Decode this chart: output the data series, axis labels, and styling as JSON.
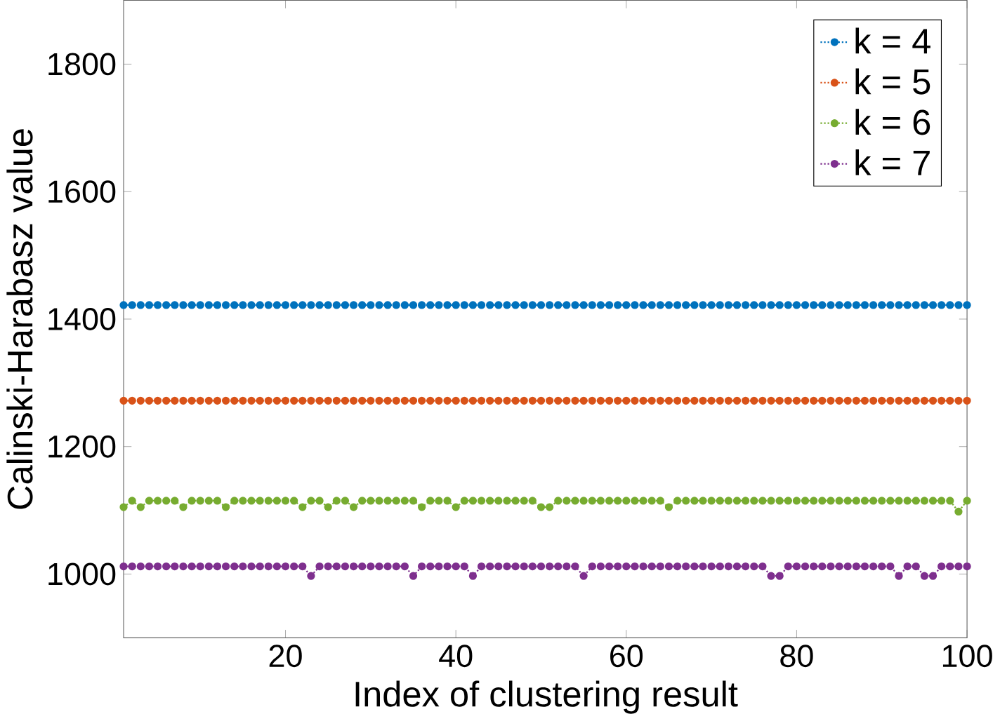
{
  "chart_data": {
    "type": "line",
    "xlabel": "Index of clustering result",
    "ylabel": "Calinski-Harabasz value",
    "x": [
      1,
      2,
      3,
      4,
      5,
      6,
      7,
      8,
      9,
      10,
      11,
      12,
      13,
      14,
      15,
      16,
      17,
      18,
      19,
      20,
      21,
      22,
      23,
      24,
      25,
      26,
      27,
      28,
      29,
      30,
      31,
      32,
      33,
      34,
      35,
      36,
      37,
      38,
      39,
      40,
      41,
      42,
      43,
      44,
      45,
      46,
      47,
      48,
      49,
      50,
      51,
      52,
      53,
      54,
      55,
      56,
      57,
      58,
      59,
      60,
      61,
      62,
      63,
      64,
      65,
      66,
      67,
      68,
      69,
      70,
      71,
      72,
      73,
      74,
      75,
      76,
      77,
      78,
      79,
      80,
      81,
      82,
      83,
      84,
      85,
      86,
      87,
      88,
      89,
      90,
      91,
      92,
      93,
      94,
      95,
      96,
      97,
      98,
      99,
      100
    ],
    "xlim": [
      1,
      100
    ],
    "xticks": [
      20,
      40,
      60,
      80,
      100
    ],
    "ylim": [
      900,
      1900
    ],
    "yticks": [
      1000,
      1200,
      1400,
      1600,
      1800
    ],
    "grid": false,
    "legend": "top right",
    "marker": "circle",
    "line_style": "dotted",
    "series": [
      {
        "name": "k = 4",
        "color": "#0072bd",
        "values": [
          1422,
          1422,
          1422,
          1422,
          1422,
          1422,
          1422,
          1422,
          1422,
          1422,
          1422,
          1422,
          1422,
          1422,
          1422,
          1422,
          1422,
          1422,
          1422,
          1422,
          1422,
          1422,
          1422,
          1422,
          1422,
          1422,
          1422,
          1422,
          1422,
          1422,
          1422,
          1422,
          1422,
          1422,
          1422,
          1422,
          1422,
          1422,
          1422,
          1422,
          1422,
          1422,
          1422,
          1422,
          1422,
          1422,
          1422,
          1422,
          1422,
          1422,
          1422,
          1422,
          1422,
          1422,
          1422,
          1422,
          1422,
          1422,
          1422,
          1422,
          1422,
          1422,
          1422,
          1422,
          1422,
          1422,
          1422,
          1422,
          1422,
          1422,
          1422,
          1422,
          1422,
          1422,
          1422,
          1422,
          1422,
          1422,
          1422,
          1422,
          1422,
          1422,
          1422,
          1422,
          1422,
          1422,
          1422,
          1422,
          1422,
          1422,
          1422,
          1422,
          1422,
          1422,
          1422,
          1422,
          1422,
          1422,
          1422,
          1422
        ]
      },
      {
        "name": "k = 5",
        "color": "#d95319",
        "values": [
          1272,
          1272,
          1272,
          1272,
          1272,
          1272,
          1272,
          1272,
          1272,
          1272,
          1272,
          1272,
          1272,
          1272,
          1272,
          1272,
          1272,
          1272,
          1272,
          1272,
          1272,
          1272,
          1272,
          1272,
          1272,
          1272,
          1272,
          1272,
          1272,
          1272,
          1272,
          1272,
          1272,
          1272,
          1272,
          1272,
          1272,
          1272,
          1272,
          1272,
          1272,
          1272,
          1272,
          1272,
          1272,
          1272,
          1272,
          1272,
          1272,
          1272,
          1272,
          1272,
          1272,
          1272,
          1272,
          1272,
          1272,
          1272,
          1272,
          1272,
          1272,
          1272,
          1272,
          1272,
          1272,
          1272,
          1272,
          1272,
          1272,
          1272,
          1272,
          1272,
          1272,
          1272,
          1272,
          1272,
          1272,
          1272,
          1272,
          1272,
          1272,
          1272,
          1272,
          1272,
          1272,
          1272,
          1272,
          1272,
          1272,
          1272,
          1272,
          1272,
          1272,
          1272,
          1272,
          1272,
          1272,
          1272,
          1272,
          1272
        ]
      },
      {
        "name": "k = 6",
        "color": "#77ac30",
        "values": [
          1105,
          1115,
          1105,
          1115,
          1115,
          1115,
          1115,
          1105,
          1115,
          1115,
          1115,
          1115,
          1105,
          1115,
          1115,
          1115,
          1115,
          1115,
          1115,
          1115,
          1115,
          1105,
          1115,
          1115,
          1105,
          1115,
          1115,
          1105,
          1115,
          1115,
          1115,
          1115,
          1115,
          1115,
          1115,
          1105,
          1115,
          1115,
          1115,
          1105,
          1115,
          1115,
          1115,
          1115,
          1115,
          1115,
          1115,
          1115,
          1115,
          1105,
          1105,
          1115,
          1115,
          1115,
          1115,
          1115,
          1115,
          1115,
          1115,
          1115,
          1115,
          1115,
          1115,
          1115,
          1105,
          1115,
          1115,
          1115,
          1115,
          1115,
          1115,
          1115,
          1115,
          1115,
          1115,
          1115,
          1115,
          1115,
          1115,
          1115,
          1115,
          1115,
          1115,
          1115,
          1115,
          1115,
          1115,
          1115,
          1115,
          1115,
          1115,
          1115,
          1115,
          1115,
          1115,
          1115,
          1115,
          1115,
          1098,
          1115
        ]
      },
      {
        "name": "k = 7",
        "color": "#7e2f8e",
        "values": [
          1012,
          1012,
          1012,
          1012,
          1012,
          1012,
          1012,
          1012,
          1012,
          1012,
          1012,
          1012,
          1012,
          1012,
          1012,
          1012,
          1012,
          1012,
          1012,
          1012,
          1012,
          1012,
          997,
          1012,
          1012,
          1012,
          1012,
          1012,
          1012,
          1012,
          1012,
          1012,
          1012,
          1012,
          997,
          1012,
          1012,
          1012,
          1012,
          1012,
          1012,
          997,
          1012,
          1012,
          1012,
          1012,
          1012,
          1012,
          1012,
          1012,
          1012,
          1012,
          1012,
          1012,
          997,
          1012,
          1012,
          1012,
          1012,
          1012,
          1012,
          1012,
          1012,
          1012,
          1012,
          1012,
          1012,
          1012,
          1012,
          1012,
          1012,
          1012,
          1012,
          1012,
          1012,
          1012,
          997,
          997,
          1012,
          1012,
          1012,
          1012,
          1012,
          1012,
          1012,
          1012,
          1012,
          1012,
          1012,
          1012,
          1012,
          997,
          1012,
          1012,
          997,
          997,
          1012,
          1012,
          1012,
          1012
        ]
      }
    ]
  }
}
